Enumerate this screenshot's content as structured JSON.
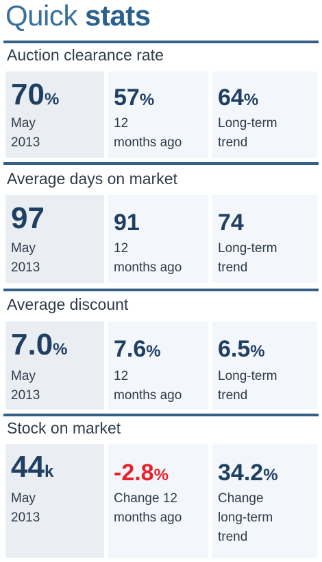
{
  "header": {
    "title_light": "Quick",
    "title_bold": "stats"
  },
  "sections": [
    {
      "title": "Auction clearance rate",
      "cells": [
        {
          "value": "70",
          "unit": "%",
          "label": "May\n2013"
        },
        {
          "value": "57",
          "unit": "%",
          "label": "12\nmonths ago"
        },
        {
          "value": "64",
          "unit": "%",
          "label": "Long-term\ntrend"
        }
      ]
    },
    {
      "title": "Average days on market",
      "cells": [
        {
          "value": "97",
          "unit": "",
          "label": "May\n2013"
        },
        {
          "value": "91",
          "unit": "",
          "label": "12\nmonths ago"
        },
        {
          "value": "74",
          "unit": "",
          "label": "Long-term\ntrend"
        }
      ]
    },
    {
      "title": "Average discount",
      "cells": [
        {
          "value": "7.0",
          "unit": "%",
          "label": "May\n2013"
        },
        {
          "value": "7.6",
          "unit": "%",
          "label": "12\nmonths ago"
        },
        {
          "value": "6.5",
          "unit": "%",
          "label": "Long-term\ntrend"
        }
      ]
    },
    {
      "title": "Stock on market",
      "cells": [
        {
          "value": "44",
          "unit": "k",
          "label": "May\n2013"
        },
        {
          "value": "-2.8",
          "unit": "%",
          "label": "Change 12\nmonths ago"
        },
        {
          "value": "34.2",
          "unit": "%",
          "label": "Change\nlong-term\ntrend"
        }
      ]
    }
  ],
  "colors": {
    "negative": "#e8202b",
    "value": "#1f3f63",
    "rule": "#355f86"
  }
}
